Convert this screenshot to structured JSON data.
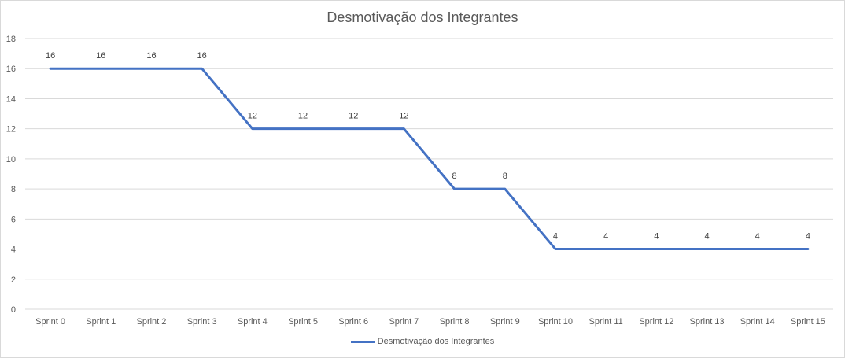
{
  "chart_data": {
    "type": "line",
    "title": "Desmotivação dos Integrantes",
    "categories": [
      "Sprint 0",
      "Sprint 1",
      "Sprint 2",
      "Sprint 3",
      "Sprint 4",
      "Sprint 5",
      "Sprint 6",
      "Sprint 7",
      "Sprint 8",
      "Sprint 9",
      "Sprint 10",
      "Sprint 11",
      "Sprint 12",
      "Sprint 13",
      "Sprint 14",
      "Sprint 15"
    ],
    "series": [
      {
        "name": "Desmotivação dos Integrantes",
        "values": [
          16,
          16,
          16,
          16,
          12,
          12,
          12,
          12,
          8,
          8,
          4,
          4,
          4,
          4,
          4,
          4
        ],
        "color": "#4472c4"
      }
    ],
    "ylim": [
      0,
      18
    ],
    "yticks": [
      0,
      2,
      4,
      6,
      8,
      10,
      12,
      14,
      16,
      18
    ],
    "grid": true,
    "data_labels": true,
    "legend": "bottom"
  }
}
